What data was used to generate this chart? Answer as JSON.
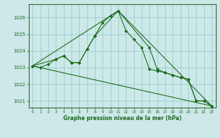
{
  "title": "Graphe pression niveau de la mer (hPa)",
  "bg_color": "#cce8e8",
  "grid_color": "#99cccc",
  "line_color": "#1a6b1a",
  "marker_color": "#1a6b1a",
  "xlim": [
    -0.5,
    23.5
  ],
  "ylim": [
    1020.6,
    1026.8
  ],
  "yticks": [
    1021,
    1022,
    1023,
    1024,
    1025,
    1026
  ],
  "xticks": [
    0,
    1,
    2,
    3,
    4,
    5,
    6,
    7,
    8,
    9,
    10,
    11,
    12,
    13,
    14,
    15,
    16,
    17,
    18,
    19,
    20,
    21,
    22,
    23
  ],
  "series": [
    {
      "x": [
        0,
        1,
        2,
        3,
        4,
        5,
        6,
        7,
        8,
        9,
        10,
        11,
        12,
        13,
        14,
        15,
        16,
        17,
        18,
        19,
        20,
        21,
        22,
        23
      ],
      "y": [
        1023.1,
        1023.0,
        1023.2,
        1023.5,
        1023.7,
        1023.3,
        1023.3,
        1024.1,
        1024.9,
        1025.7,
        1026.1,
        1026.4,
        1025.2,
        1024.7,
        1024.2,
        1022.9,
        1022.8,
        1022.7,
        1022.55,
        1022.4,
        1022.3,
        1021.0,
        1021.0,
        1020.7
      ],
      "has_markers": true
    },
    {
      "x": [
        0,
        3,
        4,
        5,
        6,
        7,
        8,
        11,
        15,
        16,
        17,
        18,
        19,
        20,
        21,
        22,
        23
      ],
      "y": [
        1023.1,
        1023.5,
        1023.7,
        1023.3,
        1023.3,
        1024.1,
        1024.9,
        1026.4,
        1024.2,
        1022.9,
        1022.7,
        1022.55,
        1022.4,
        1022.3,
        1021.0,
        1021.0,
        1020.7
      ],
      "has_markers": true
    },
    {
      "x": [
        0,
        11,
        23
      ],
      "y": [
        1023.1,
        1026.4,
        1020.7
      ],
      "has_markers": false
    },
    {
      "x": [
        0,
        23
      ],
      "y": [
        1023.1,
        1020.7
      ],
      "has_markers": false
    }
  ]
}
